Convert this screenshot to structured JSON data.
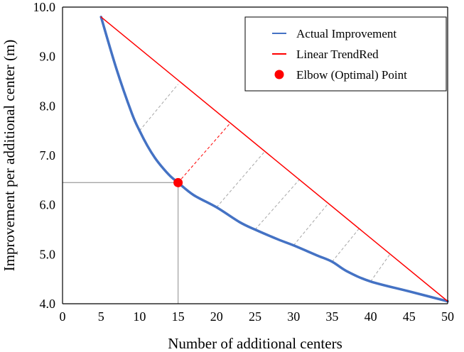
{
  "chart_data": {
    "type": "line",
    "title": "",
    "xlabel": "Number of additional centers",
    "ylabel": "Improvement per additional center (m)",
    "xlim": [
      0,
      50
    ],
    "ylim": [
      4.0,
      10.0
    ],
    "x_ticks": [
      0,
      5,
      10,
      15,
      20,
      25,
      30,
      35,
      40,
      45,
      50
    ],
    "x_tick_labels": [
      "0",
      "5",
      "10",
      "15",
      "20",
      "25",
      "30",
      "35",
      "40",
      "45",
      "50"
    ],
    "y_ticks": [
      4.0,
      5.0,
      6.0,
      7.0,
      8.0,
      9.0,
      10.0
    ],
    "y_tick_labels": [
      "4.0",
      "5.0",
      "6.0",
      "7.0",
      "8.0",
      "9.0",
      "10.0"
    ],
    "grid": false,
    "legend_position": "top-right",
    "series": [
      {
        "name": "Actual Improvement",
        "kind": "line",
        "color": "#4472C4",
        "x": [
          5,
          7,
          9,
          10,
          11,
          12,
          13,
          14,
          15,
          17,
          20,
          23,
          25,
          28,
          30,
          33,
          35,
          37,
          40,
          45,
          50
        ],
        "y": [
          9.8,
          8.75,
          7.85,
          7.5,
          7.2,
          6.95,
          6.75,
          6.58,
          6.45,
          6.2,
          5.95,
          5.65,
          5.5,
          5.3,
          5.18,
          4.98,
          4.85,
          4.65,
          4.45,
          4.25,
          4.05
        ]
      },
      {
        "name": "Linear TrendRed",
        "kind": "line",
        "color": "#FF0000",
        "x": [
          5,
          50
        ],
        "y": [
          9.8,
          4.05
        ]
      },
      {
        "name": "Elbow (Optimal) Point",
        "kind": "point",
        "color": "#FF0000",
        "x": [
          15
        ],
        "y": [
          6.45
        ]
      }
    ],
    "reference_lines": {
      "color": "#A6A6A6",
      "elbow_vertical": {
        "x": 15,
        "y_from": 4.0,
        "y_to": 6.45
      },
      "elbow_horizontal": {
        "y": 6.45,
        "x_from": 0,
        "x_to": 15
      }
    },
    "distance_segments": [
      {
        "x1": 10,
        "y1": 7.5,
        "x2": 15,
        "y2": 8.44,
        "color": "#A6A6A6"
      },
      {
        "x1": 15,
        "y1": 6.45,
        "x2": 21.7,
        "y2": 7.64,
        "color": "#FF0000"
      },
      {
        "x1": 20,
        "y1": 5.95,
        "x2": 26.2,
        "y2": 7.07,
        "color": "#A6A6A6"
      },
      {
        "x1": 25,
        "y1": 5.5,
        "x2": 30.8,
        "y2": 6.52,
        "color": "#A6A6A6"
      },
      {
        "x1": 30,
        "y1": 5.18,
        "x2": 34.5,
        "y2": 6.03,
        "color": "#A6A6A6"
      },
      {
        "x1": 35,
        "y1": 4.85,
        "x2": 38.5,
        "y2": 5.52,
        "color": "#A6A6A6"
      },
      {
        "x1": 40,
        "y1": 4.45,
        "x2": 42.5,
        "y2": 5.0,
        "color": "#A6A6A6"
      }
    ],
    "legend": [
      {
        "label": "Actual Improvement",
        "marker": "line",
        "color": "#4472C4"
      },
      {
        "label": "Linear TrendRed",
        "marker": "line",
        "color": "#FF0000"
      },
      {
        "label": "Elbow (Optimal) Point",
        "marker": "dot",
        "color": "#FF0000"
      }
    ]
  }
}
